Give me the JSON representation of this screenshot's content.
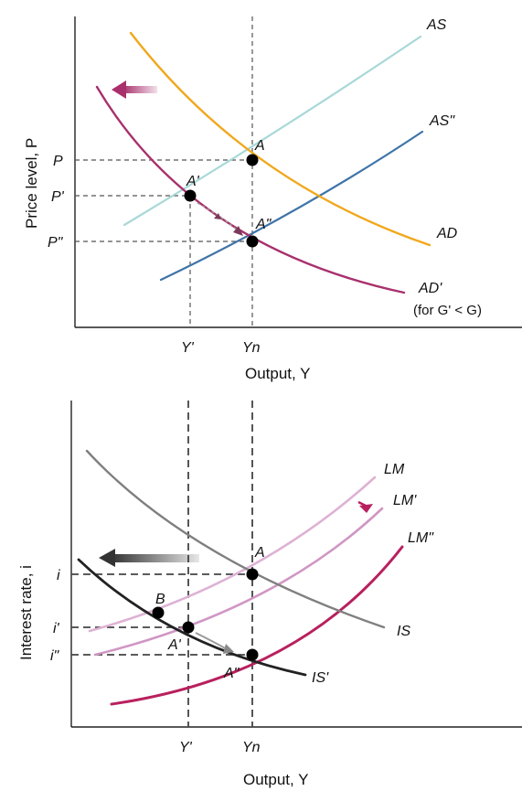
{
  "colors": {
    "as": "#a8d8d8",
    "as2": "#3f74a8",
    "ad": "#f0a81c",
    "ad2": "#a8306c",
    "is": "#7f7f7f",
    "is2": "#222222",
    "lm": "#deb2d4",
    "lm2": "#d096c4",
    "lm3": "#b8205e",
    "arrow": "#a8306c"
  },
  "top": {
    "ylabel": "Price level, P",
    "xlabel": "Output, Y",
    "curves": {
      "as": "AS",
      "as2": "AS\"",
      "ad": "AD",
      "ad2": "AD'",
      "ad2_note": "(for G' < G)"
    },
    "points": {
      "a": "A",
      "a1": "A'",
      "a2": "A\""
    },
    "y_ticks": [
      "P",
      "P'",
      "P\""
    ],
    "x_ticks": [
      "Y'",
      "Yn"
    ]
  },
  "bottom": {
    "ylabel": "Interest rate, i",
    "xlabel": "Output, Y",
    "curves": {
      "lm": "LM",
      "lm2": "LM'",
      "lm3": "LM\"",
      "is": "IS",
      "is2": "IS'"
    },
    "points": {
      "a": "A",
      "b": "B",
      "a1": "A'",
      "a2": "A\""
    },
    "y_ticks": [
      "i",
      "i'",
      "i\""
    ],
    "x_ticks": [
      "Y'",
      "Yn"
    ]
  }
}
